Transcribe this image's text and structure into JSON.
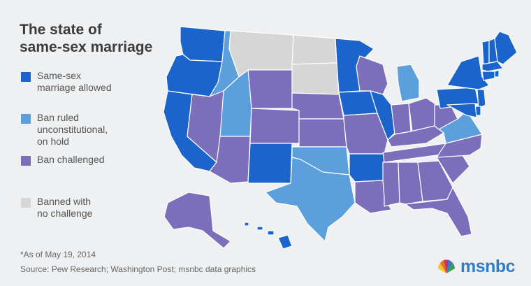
{
  "title": {
    "line1": "The state of",
    "line2": "same-sex marriage"
  },
  "legend": [
    {
      "key": "allowed",
      "line1": "Same-sex",
      "line2": "marriage allowed",
      "line3": "",
      "color": "#1a64cc"
    },
    {
      "key": "onhold",
      "line1": "Ban ruled",
      "line2": "unconstitutional,",
      "line3": "on hold",
      "color": "#5b9fdc"
    },
    {
      "key": "challenged",
      "line1": "Ban challenged",
      "line2": "",
      "line3": "",
      "color": "#7b6fbc"
    },
    {
      "key": "banned",
      "line1": "Banned with",
      "line2": "no challenge",
      "line3": "",
      "color": "#d6d6d6"
    }
  ],
  "footnote": "*As of May 19, 2014",
  "source": "Source: Pew Research; Washington Post; msnbc data graphics",
  "brand": {
    "name": "msnbc",
    "icon": "peacock-icon",
    "color": "#2f7fc8"
  },
  "map_states": [
    {
      "id": "WA",
      "status": "allowed"
    },
    {
      "id": "OR",
      "status": "allowed"
    },
    {
      "id": "CA",
      "status": "allowed"
    },
    {
      "id": "ID",
      "status": "onhold"
    },
    {
      "id": "NV",
      "status": "challenged"
    },
    {
      "id": "MT",
      "status": "banned"
    },
    {
      "id": "WY",
      "status": "challenged"
    },
    {
      "id": "UT",
      "status": "onhold"
    },
    {
      "id": "AZ",
      "status": "challenged"
    },
    {
      "id": "CO",
      "status": "challenged"
    },
    {
      "id": "NM",
      "status": "allowed"
    },
    {
      "id": "ND",
      "status": "banned"
    },
    {
      "id": "SD",
      "status": "banned"
    },
    {
      "id": "NE",
      "status": "challenged"
    },
    {
      "id": "KS",
      "status": "challenged"
    },
    {
      "id": "OK",
      "status": "onhold"
    },
    {
      "id": "TX",
      "status": "onhold"
    },
    {
      "id": "MN",
      "status": "allowed"
    },
    {
      "id": "IA",
      "status": "allowed"
    },
    {
      "id": "MO",
      "status": "challenged"
    },
    {
      "id": "AR",
      "status": "allowed"
    },
    {
      "id": "LA",
      "status": "challenged"
    },
    {
      "id": "WI",
      "status": "challenged"
    },
    {
      "id": "IL",
      "status": "allowed"
    },
    {
      "id": "MI",
      "status": "onhold"
    },
    {
      "id": "IN",
      "status": "challenged"
    },
    {
      "id": "OH",
      "status": "challenged"
    },
    {
      "id": "KY",
      "status": "challenged"
    },
    {
      "id": "TN",
      "status": "challenged"
    },
    {
      "id": "MS",
      "status": "challenged"
    },
    {
      "id": "AL",
      "status": "challenged"
    },
    {
      "id": "GA",
      "status": "challenged"
    },
    {
      "id": "FL",
      "status": "challenged"
    },
    {
      "id": "SC",
      "status": "challenged"
    },
    {
      "id": "NC",
      "status": "challenged"
    },
    {
      "id": "VA",
      "status": "onhold"
    },
    {
      "id": "WV",
      "status": "challenged"
    },
    {
      "id": "PA",
      "status": "allowed"
    },
    {
      "id": "NY",
      "status": "allowed"
    },
    {
      "id": "VT",
      "status": "allowed"
    },
    {
      "id": "NH",
      "status": "allowed"
    },
    {
      "id": "ME",
      "status": "allowed"
    },
    {
      "id": "MA",
      "status": "allowed"
    },
    {
      "id": "RI",
      "status": "allowed"
    },
    {
      "id": "CT",
      "status": "allowed"
    },
    {
      "id": "NJ",
      "status": "allowed"
    },
    {
      "id": "DE",
      "status": "allowed"
    },
    {
      "id": "MD",
      "status": "allowed"
    },
    {
      "id": "AK",
      "status": "challenged"
    },
    {
      "id": "HI",
      "status": "allowed"
    }
  ]
}
